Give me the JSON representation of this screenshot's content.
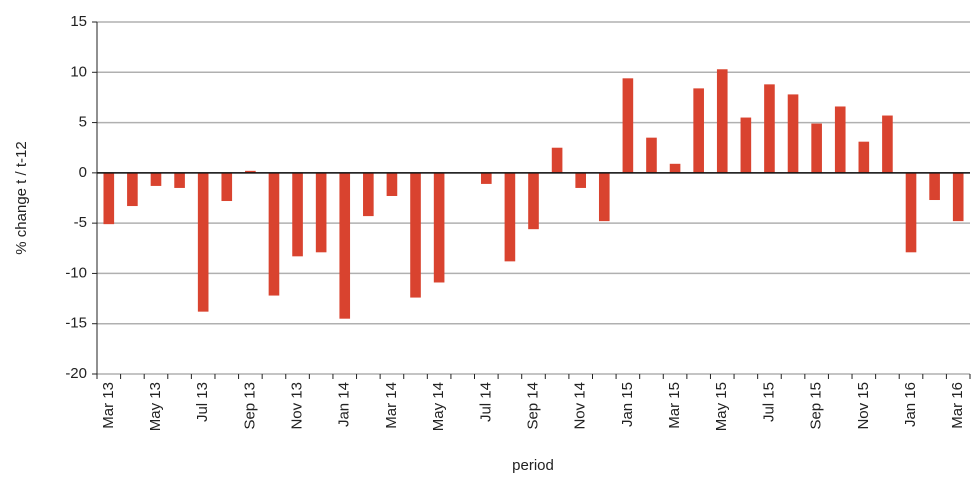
{
  "chart_data": {
    "type": "bar",
    "x_label": "period",
    "y_label": "% change t / t-12",
    "categories": [
      "Mar 13",
      null,
      "May 13",
      null,
      "Jul 13",
      null,
      "Sep 13",
      null,
      "Nov 13",
      null,
      "Jan 14",
      null,
      "Mar 14",
      null,
      "May 14",
      null,
      "Jul 14",
      null,
      "Sep 14",
      null,
      "Nov 14",
      null,
      "Jan 15",
      null,
      "Mar 15",
      null,
      "May 15",
      null,
      "Jul 15",
      null,
      "Sep 15",
      null,
      "Nov 15",
      null,
      "Jan 16",
      null,
      "Mar 16"
    ],
    "values": [
      -5.1,
      -3.3,
      -1.3,
      -1.5,
      -13.8,
      -2.8,
      0.2,
      -12.2,
      -8.3,
      -7.9,
      -14.5,
      -4.3,
      -2.3,
      -12.4,
      -10.9,
      0,
      -1.1,
      -8.8,
      -5.6,
      2.5,
      -1.5,
      -4.8,
      9.4,
      3.5,
      0.9,
      8.4,
      10.3,
      5.5,
      8.8,
      7.8,
      4.9,
      6.6,
      3.1,
      5.7,
      -7.9,
      -2.7,
      -4.8
    ],
    "color": "#d9432f",
    "ylim": [
      -20,
      15
    ],
    "yticks": [
      -20,
      -15,
      -10,
      -5,
      0,
      5,
      10,
      15
    ],
    "grid": true
  }
}
